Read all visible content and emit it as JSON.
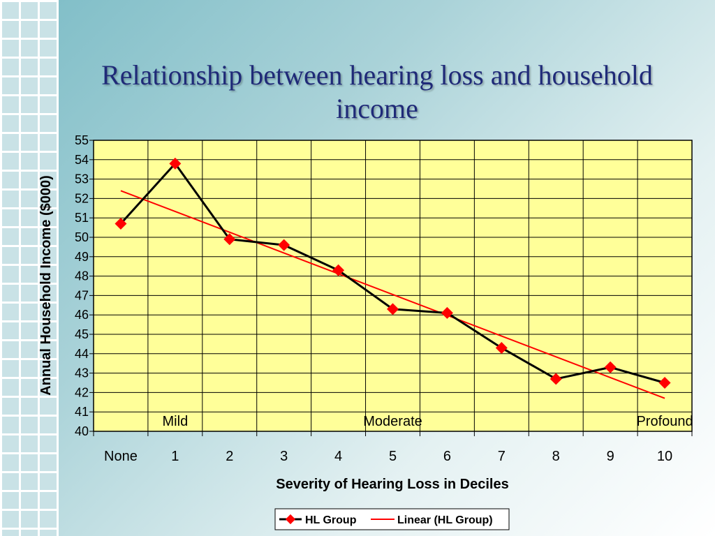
{
  "slide": {
    "title": "Relationship between hearing loss and household income"
  },
  "colors": {
    "plot_background": "#ffff99",
    "series_line": "#000000",
    "series_marker": "#ff0000",
    "trendline": "#ff0000",
    "title_text": "#1f2a78"
  },
  "chart_data": {
    "type": "line",
    "title": "Relationship between hearing loss and household income",
    "xlabel": "Severity of Hearing Loss in Deciles",
    "ylabel": "Annual Household Income ($000)",
    "categories": [
      "None",
      "1",
      "2",
      "3",
      "4",
      "5",
      "6",
      "7",
      "8",
      "9",
      "10"
    ],
    "ylim": [
      40,
      55
    ],
    "yticks": [
      40,
      41,
      42,
      43,
      44,
      45,
      46,
      47,
      48,
      49,
      50,
      51,
      52,
      53,
      54,
      55
    ],
    "grid": true,
    "legend_position": "bottom",
    "series": [
      {
        "name": "HL Group",
        "values": [
          50.7,
          53.8,
          49.9,
          49.6,
          48.3,
          46.3,
          46.1,
          44.3,
          42.7,
          43.3,
          42.5
        ],
        "marker": "diamond"
      }
    ],
    "trendline": {
      "name": "Linear (HL Group)",
      "type": "linear",
      "start": 52.4,
      "end": 41.7
    },
    "annotations": [
      {
        "text": "Mild",
        "category": "1"
      },
      {
        "text": "Moderate",
        "category": "5"
      },
      {
        "text": "Profound",
        "category": "10"
      }
    ]
  }
}
